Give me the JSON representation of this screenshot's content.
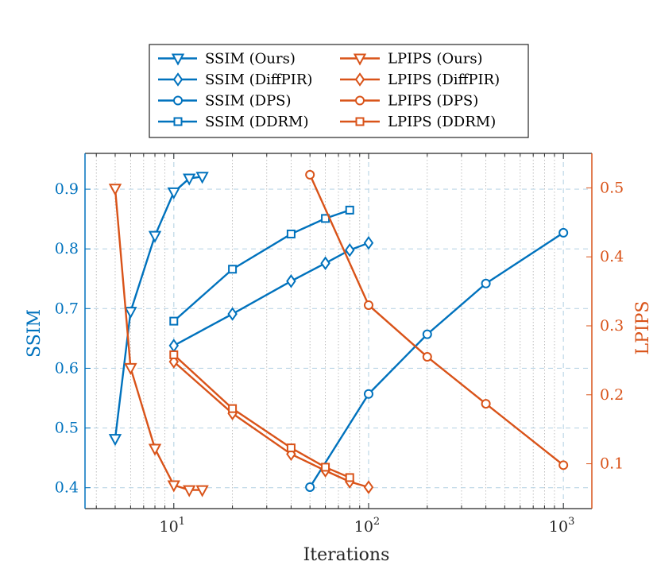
{
  "chart_data": {
    "type": "line",
    "xlabel": "Iterations",
    "xscale": "log",
    "xlim": [
      3.5,
      1400
    ],
    "x_ticks": [
      {
        "value": 10,
        "base": "10",
        "exp": "1"
      },
      {
        "value": 100,
        "base": "10",
        "exp": "2"
      },
      {
        "value": 1000,
        "base": "10",
        "exp": "3"
      }
    ],
    "left_axis": {
      "label": "SSIM",
      "ylim": [
        0.365,
        0.96
      ],
      "ticks": [
        0.4,
        0.5,
        0.6,
        0.7,
        0.8,
        0.9
      ],
      "tick_labels": [
        "0.4",
        "0.5",
        "0.6",
        "0.7",
        "0.8",
        "0.9"
      ]
    },
    "right_axis": {
      "label": "LPIPS",
      "ylim": [
        0.035,
        0.55
      ],
      "ticks": [
        0.1,
        0.2,
        0.3,
        0.4,
        0.5
      ],
      "tick_labels": [
        "0.1",
        "0.2",
        "0.3",
        "0.4",
        "0.5"
      ]
    },
    "legend_position": "top-outside",
    "colors": {
      "ssim": "#0072bd",
      "lpips": "#d95319",
      "grid_major": "#bcd6e6",
      "grid_minor": "#b0b0b0"
    },
    "series": [
      {
        "name": "SSIM (Ours)",
        "axis": "left",
        "marker": "triangle-down",
        "x": [
          5,
          6,
          8,
          10,
          12,
          14
        ],
        "y": [
          0.482,
          0.695,
          0.822,
          0.895,
          0.918,
          0.921
        ]
      },
      {
        "name": "SSIM (DiffPIR)",
        "axis": "left",
        "marker": "diamond",
        "x": [
          10,
          20,
          40,
          60,
          80,
          100
        ],
        "y": [
          0.638,
          0.691,
          0.746,
          0.776,
          0.798,
          0.81
        ]
      },
      {
        "name": "SSIM (DPS)",
        "axis": "left",
        "marker": "circle",
        "x": [
          50,
          100,
          200,
          400,
          1000
        ],
        "y": [
          0.401,
          0.557,
          0.657,
          0.742,
          0.827
        ]
      },
      {
        "name": "SSIM (DDRM)",
        "axis": "left",
        "marker": "square",
        "x": [
          10,
          20,
          40,
          60,
          80
        ],
        "y": [
          0.679,
          0.766,
          0.825,
          0.851,
          0.865
        ]
      },
      {
        "name": "LPIPS (Ours)",
        "axis": "right",
        "marker": "triangle-down",
        "x": [
          5,
          6,
          8,
          10,
          12,
          14
        ],
        "y": [
          0.499,
          0.239,
          0.122,
          0.069,
          0.062,
          0.062
        ]
      },
      {
        "name": "LPIPS (DiffPIR)",
        "axis": "right",
        "marker": "diamond",
        "x": [
          10,
          20,
          40,
          60,
          80,
          100
        ],
        "y": [
          0.248,
          0.173,
          0.114,
          0.09,
          0.074,
          0.066
        ]
      },
      {
        "name": "LPIPS (DPS)",
        "axis": "right",
        "marker": "circle",
        "x": [
          50,
          100,
          200,
          400,
          1000
        ],
        "y": [
          0.519,
          0.33,
          0.255,
          0.187,
          0.098
        ]
      },
      {
        "name": "LPIPS (DDRM)",
        "axis": "right",
        "marker": "square",
        "x": [
          10,
          20,
          40,
          60,
          80
        ],
        "y": [
          0.258,
          0.18,
          0.123,
          0.095,
          0.08
        ]
      }
    ]
  }
}
